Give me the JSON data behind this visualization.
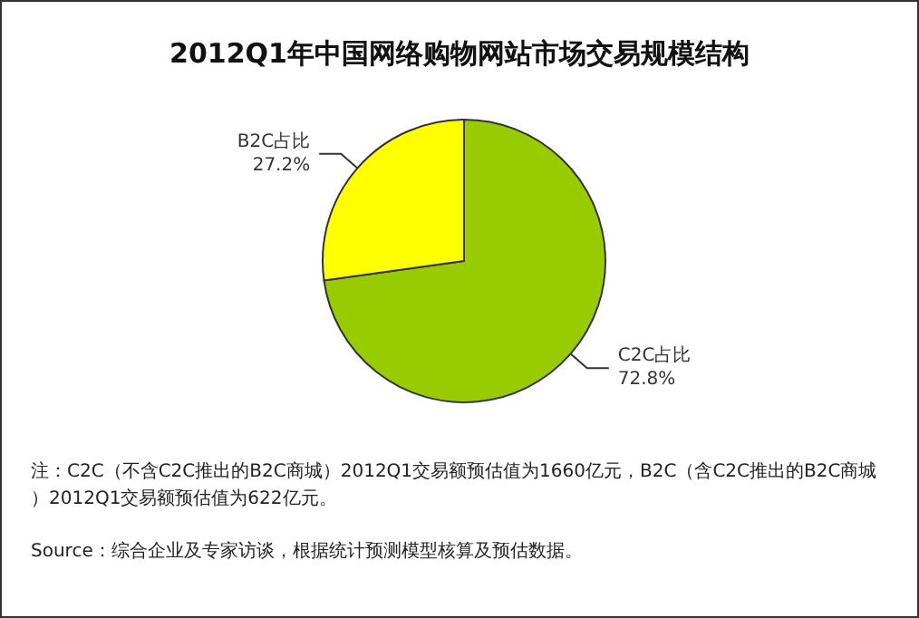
{
  "chart_data": {
    "type": "pie",
    "title": "2012Q1年中国网络购物网站市场交易规模结构",
    "categories": [
      "C2C占比",
      "B2C占比"
    ],
    "values": [
      72.8,
      27.2
    ],
    "value_labels": [
      "72.8%",
      "27.2%"
    ],
    "colors": [
      "#99cc00",
      "#ffff00"
    ],
    "legend": false,
    "annotations": [
      "注：C2C（不含C2C推出的B2C商城）2012Q1交易额预估值为1660亿元，B2C（含C2C推出的B2C商城）2012Q1交易额预估值为622亿元。",
      "Source：综合企业及专家访谈，根据统计预测模型核算及预估数据。"
    ]
  }
}
